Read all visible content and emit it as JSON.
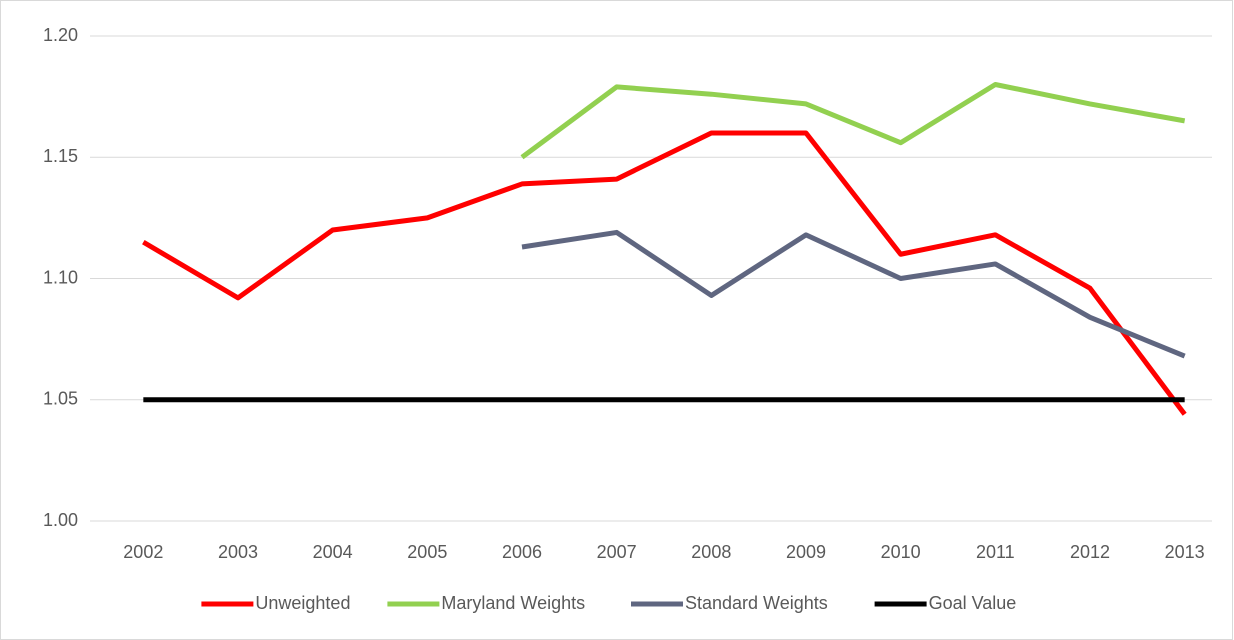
{
  "chart_data": {
    "type": "line",
    "categories": [
      "2002",
      "2003",
      "2004",
      "2005",
      "2006",
      "2007",
      "2008",
      "2009",
      "2010",
      "2011",
      "2012",
      "2013"
    ],
    "series": [
      {
        "name": "Unweighted",
        "color": "#ff0000",
        "values": [
          1.115,
          1.092,
          1.12,
          1.125,
          1.139,
          1.141,
          1.16,
          1.16,
          1.11,
          1.118,
          1.096,
          1.044
        ]
      },
      {
        "name": "Maryland Weights",
        "color": "#92d050",
        "values": [
          null,
          null,
          null,
          null,
          1.15,
          1.179,
          1.176,
          1.172,
          1.156,
          1.18,
          1.172,
          1.165
        ]
      },
      {
        "name": "Standard Weights",
        "color": "#5f6680",
        "values": [
          null,
          null,
          null,
          null,
          1.113,
          1.119,
          1.093,
          1.118,
          1.1,
          1.106,
          1.084,
          1.068
        ]
      },
      {
        "name": "Goal Value",
        "color": "#000000",
        "values": [
          1.05,
          1.05,
          1.05,
          1.05,
          1.05,
          1.05,
          1.05,
          1.05,
          1.05,
          1.05,
          1.05,
          1.05
        ]
      }
    ],
    "ylim": [
      1.0,
      1.2
    ],
    "yticks": [
      {
        "value": 1.0,
        "label": "1.00"
      },
      {
        "value": 1.05,
        "label": "1.05"
      },
      {
        "value": 1.1,
        "label": "1.10"
      },
      {
        "value": 1.15,
        "label": "1.15"
      },
      {
        "value": 1.2,
        "label": "1.20"
      }
    ],
    "grid": true,
    "legend": "bottom"
  }
}
